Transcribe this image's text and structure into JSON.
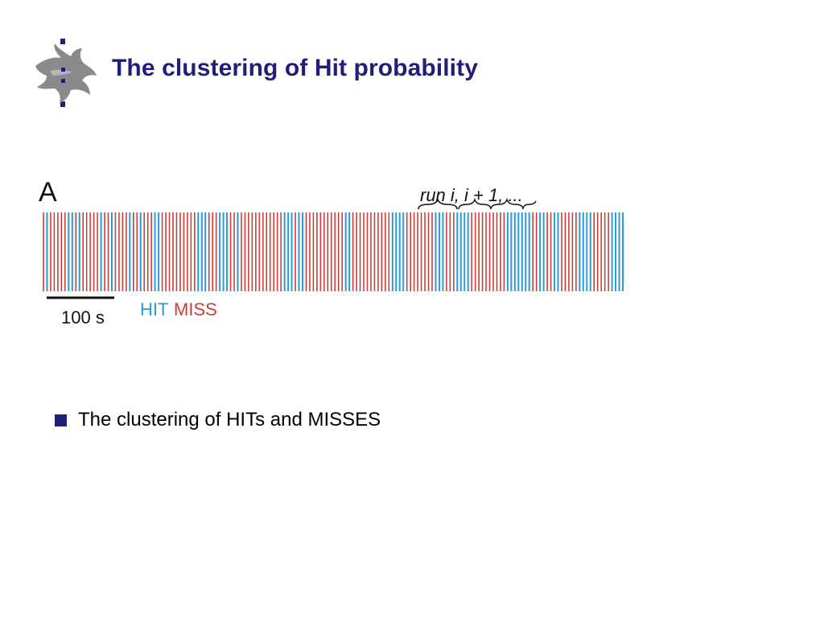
{
  "slide": {
    "title": "The clustering of Hit probability",
    "bullets": [
      "The clustering of HITs and MISSES"
    ]
  },
  "colors": {
    "title": "#1f1f7a",
    "bullet": "#1f1f7a",
    "hit": "#2a9ad8",
    "miss": "#c9403a",
    "text": "#000000"
  },
  "logo": {
    "icon": "flame-crest-icon"
  },
  "figure": {
    "panel_label": "A",
    "run_label": "run i, i + 1, ...",
    "scale_label": "100 s",
    "legend": {
      "hit": "HIT",
      "miss": "MISS"
    }
  },
  "chart_data": {
    "type": "event-raster",
    "panel": "A",
    "x_unit": "s",
    "scale_bar_seconds": 100,
    "categories": [
      "HIT",
      "MISS"
    ],
    "sequence": "RBRRRRRBBRBRRRRRBRRBRRRRBRRBRRRBBRRRRRRRRRRBBBRRRBBBRRBRRRRRRRRRRRRBBBRBBRRRRRRRRRRRBBRRRRRRRRRRRBBBBRRRRRRRRBBBRRRBBBBRRRRRRRRRRBBBBBBBRRBBRRBBRRRRRBBBBRRRRRBBBB",
    "sequence_key": {
      "B": "HIT",
      "R": "MISS"
    },
    "annotation": "run i, i + 1, ..."
  }
}
